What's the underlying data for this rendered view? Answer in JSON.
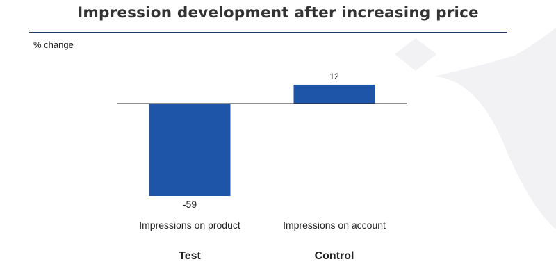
{
  "title": "Impression development after increasing price",
  "colors": {
    "bar": "#1f55a8",
    "rule": "#1f3a6b",
    "baseline": "#222222",
    "watermark": "#f0f0f2"
  },
  "chart_data": {
    "type": "bar",
    "title": "Impression development after increasing price",
    "ylabel": "% change",
    "xlabel": "",
    "ylim": [
      -59,
      12
    ],
    "grid": false,
    "categories": [
      "Impressions on product",
      "Impressions on account"
    ],
    "groups": [
      "Test",
      "Control"
    ],
    "series": [
      {
        "values": [
          -59,
          12
        ]
      }
    ],
    "data_labels": [
      "-59",
      "12"
    ]
  }
}
